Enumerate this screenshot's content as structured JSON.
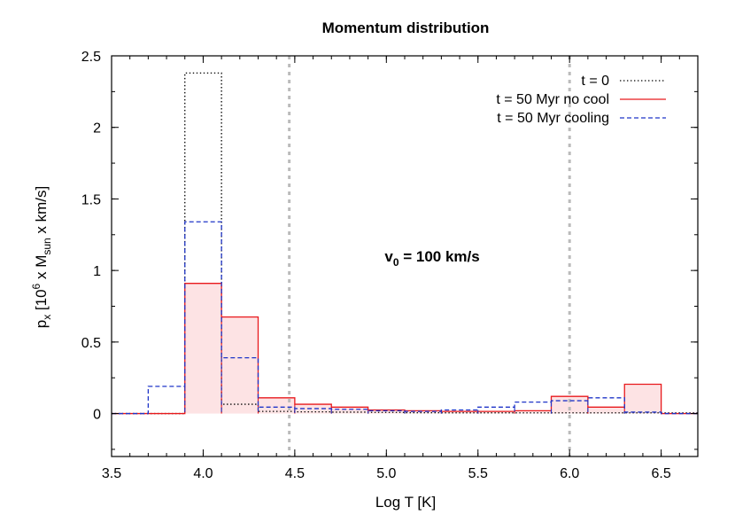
{
  "chart_data": {
    "type": "histogram-step",
    "title": "Momentum distribution",
    "xlabel": "Log T [K]",
    "ylabel": {
      "prefix": "p",
      "prefix_sub": "x",
      "open": " [10",
      "exp": "6",
      "mid": " x M",
      "mid_sub": "sun",
      "tail": " x km/s]"
    },
    "xlim": [
      3.5,
      6.7
    ],
    "ylim": [
      -0.3,
      2.5
    ],
    "xticks": [
      3.5,
      4.0,
      4.5,
      5.0,
      5.5,
      6.0,
      6.5
    ],
    "xtick_labels": [
      "3.5",
      "4.0",
      "4.5",
      "5.0",
      "5.5",
      "6.0",
      "6.5"
    ],
    "yticks": [
      0,
      0.5,
      1,
      1.5,
      2,
      2.5
    ],
    "ytick_labels": [
      "0",
      "0.5",
      "1",
      "1.5",
      "2",
      "2.5"
    ],
    "grid": false,
    "legend_position": "top-right",
    "reference_lines_x": [
      4.47,
      6.0
    ],
    "reference_line_color": "#bbbbbb",
    "annotation": {
      "main": "v",
      "sub": "0",
      "rest": " = 100 km/s",
      "x": 5.25,
      "y": 1.1
    },
    "bin_edges": [
      3.5,
      3.7,
      3.9,
      4.1,
      4.3,
      4.5,
      4.7,
      4.9,
      5.1,
      5.3,
      5.5,
      5.7,
      5.9,
      6.1,
      6.3,
      6.5,
      6.7
    ],
    "series": [
      {
        "name": "t = 0",
        "style": "dotted",
        "color": "#000000",
        "values": [
          0,
          0,
          2.38,
          0.065,
          0.015,
          0.012,
          0.01,
          0.008,
          0.006,
          0.005,
          0.005,
          0.005,
          0.005,
          0.005,
          0.005,
          0.005
        ]
      },
      {
        "name": "t = 50 Myr no cool",
        "style": "solid",
        "color": "#e8191c",
        "fill": "#fde3e4",
        "values": [
          0,
          0,
          0.91,
          0.675,
          0.11,
          0.065,
          0.045,
          0.025,
          0.02,
          0.015,
          0.015,
          0.02,
          0.12,
          0.045,
          0.205,
          0
        ]
      },
      {
        "name": "t = 50 Myr cooling",
        "style": "dashed",
        "color": "#1f35c8",
        "values": [
          0,
          0.19,
          1.34,
          0.39,
          0.045,
          0.035,
          0.03,
          0.02,
          0.015,
          0.025,
          0.045,
          0.08,
          0.09,
          0.11,
          0.01,
          0
        ]
      }
    ]
  }
}
